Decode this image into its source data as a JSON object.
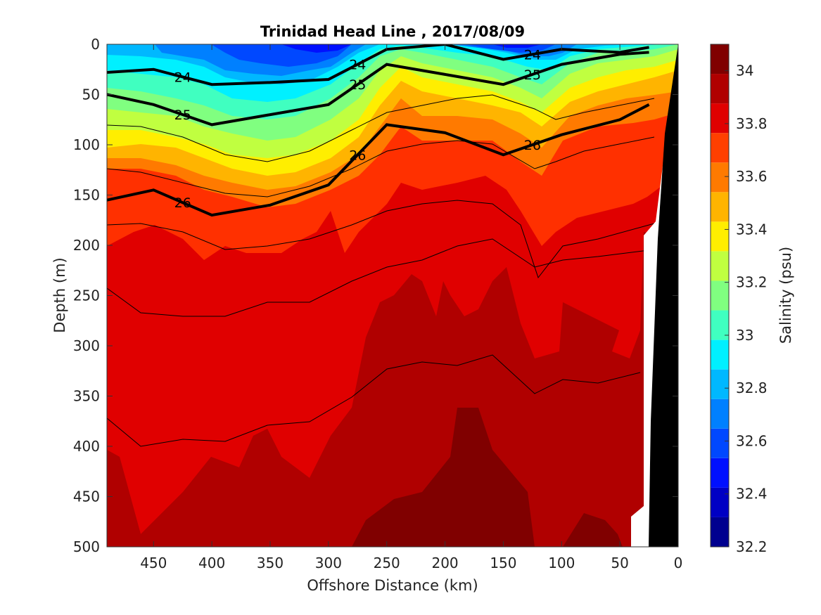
{
  "chart_data": {
    "type": "heatmap",
    "title": "Trinidad Head Line , 2017/08/09",
    "xlabel": "Offshore Distance (km)",
    "ylabel": "Depth (m)",
    "colorbar_label": "Salinity (psu)",
    "xlim": [
      490,
      0
    ],
    "ylim": [
      0,
      500
    ],
    "y_reversed": true,
    "x_reversed": true,
    "xticks": [
      450,
      400,
      350,
      300,
      250,
      200,
      150,
      100,
      50,
      0
    ],
    "yticks": [
      0,
      50,
      100,
      150,
      200,
      250,
      300,
      350,
      400,
      450,
      500
    ],
    "colorbar_ticks": [
      "34",
      "33.8",
      "33.6",
      "33.4",
      "33.2",
      "33",
      "32.8",
      "32.6",
      "32.4",
      "32.2"
    ],
    "colorbar_range": [
      32.2,
      34.1
    ],
    "colors": [
      "#00008f",
      "#0000c4",
      "#0010ff",
      "#0048ff",
      "#0080ff",
      "#00b8ff",
      "#00f0ff",
      "#40ffc0",
      "#80ff80",
      "#c0ff40",
      "#ffee00",
      "#ffb400",
      "#ff7a00",
      "#ff4000",
      "#e00000",
      "#b00000",
      "#800000"
    ],
    "x": [
      490,
      450,
      400,
      350,
      300,
      250,
      200,
      150,
      100,
      50,
      25
    ],
    "isopycnals": [
      {
        "label": "24",
        "depths": [
          28,
          25,
          40,
          38,
          35,
          5,
          0,
          15,
          5,
          8,
          3
        ]
      },
      {
        "label": "25",
        "depths": [
          50,
          60,
          80,
          70,
          60,
          20,
          30,
          40,
          20,
          10,
          8
        ]
      },
      {
        "label": "26",
        "depths": [
          155,
          145,
          170,
          160,
          140,
          80,
          88,
          110,
          90,
          75,
          60
        ]
      }
    ],
    "bottom_profile_depth": [
      500,
      500,
      500,
      500,
      500,
      500,
      500,
      500,
      500,
      500,
      500
    ]
  }
}
